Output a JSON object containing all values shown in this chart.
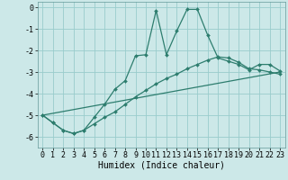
{
  "xlabel": "Humidex (Indice chaleur)",
  "background_color": "#cce8e8",
  "grid_color": "#99cccc",
  "line_color": "#2d7d6e",
  "xlim": [
    -0.5,
    23.5
  ],
  "ylim": [
    -6.5,
    0.25
  ],
  "yticks": [
    0,
    -1,
    -2,
    -3,
    -4,
    -5,
    -6
  ],
  "xticks": [
    0,
    1,
    2,
    3,
    4,
    5,
    6,
    7,
    8,
    9,
    10,
    11,
    12,
    13,
    14,
    15,
    16,
    17,
    18,
    19,
    20,
    21,
    22,
    23
  ],
  "series1_x": [
    0,
    1,
    2,
    3,
    4,
    5,
    6,
    7,
    8,
    9,
    10,
    11,
    12,
    13,
    14,
    15,
    16,
    17,
    18,
    19,
    20,
    21,
    22,
    23
  ],
  "series1_y": [
    -5.0,
    -5.35,
    -5.7,
    -5.85,
    -5.7,
    -5.1,
    -4.5,
    -3.8,
    -3.4,
    -2.25,
    -2.2,
    -0.15,
    -2.2,
    -1.1,
    -0.1,
    -0.1,
    -1.3,
    -2.35,
    -2.5,
    -2.65,
    -2.9,
    -2.65,
    -2.65,
    -2.95
  ],
  "series2_x": [
    0,
    1,
    2,
    3,
    4,
    5,
    6,
    7,
    8,
    9,
    10,
    11,
    12,
    13,
    14,
    15,
    16,
    17,
    18,
    19,
    20,
    21,
    22,
    23
  ],
  "series2_y": [
    -5.0,
    -5.35,
    -5.7,
    -5.85,
    -5.7,
    -5.4,
    -5.1,
    -4.85,
    -4.5,
    -4.15,
    -3.85,
    -3.55,
    -3.3,
    -3.1,
    -2.85,
    -2.65,
    -2.45,
    -2.3,
    -2.35,
    -2.55,
    -2.85,
    -2.9,
    -3.0,
    -3.1
  ],
  "series3_x": [
    0,
    23
  ],
  "series3_y": [
    -5.0,
    -3.0
  ],
  "xlabel_fontsize": 7,
  "tick_fontsize": 6,
  "linewidth": 0.9,
  "markersize": 2.0
}
